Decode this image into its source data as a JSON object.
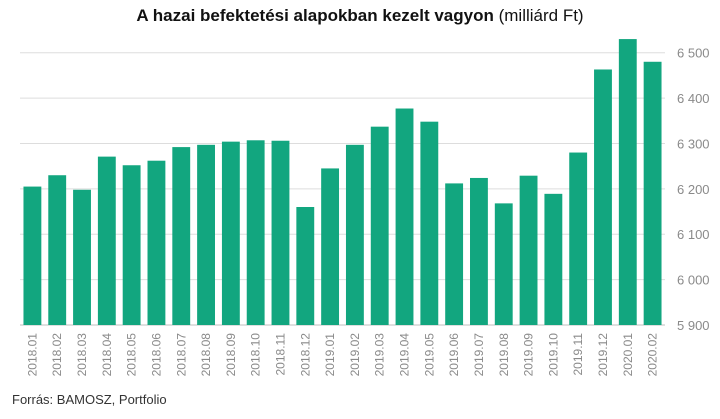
{
  "title": {
    "bold": "A hazai befektetési alapokban kezelt vagyon",
    "normal": "(milliárd Ft)"
  },
  "source": "Forrás: BAMOSZ, Portfolio",
  "colors": {
    "bar": "#12a67f",
    "grid": "#dddddd",
    "axis": "#bfbfbf"
  },
  "chart_data": {
    "type": "bar",
    "categories": [
      "2018.01",
      "2018.02",
      "2018.03",
      "2018.04",
      "2018.05",
      "2018.06",
      "2018.07",
      "2018.08",
      "2018.09",
      "2018.10",
      "2018.11",
      "2018.12",
      "2019.01",
      "2019.02",
      "2019.03",
      "2019.04",
      "2019.05",
      "2019.06",
      "2019.07",
      "2019.08",
      "2019.09",
      "2019.10",
      "2019.11",
      "2019.12",
      "2020.01",
      "2020.02"
    ],
    "values": [
      6205,
      6230,
      6198,
      6271,
      6252,
      6262,
      6292,
      6297,
      6304,
      6307,
      6306,
      6160,
      6245,
      6297,
      6337,
      6377,
      6348,
      6212,
      6224,
      6168,
      6229,
      6189,
      6280,
      6463,
      6530,
      6480
    ],
    "ylim": [
      5900,
      6550
    ],
    "yticks": [
      5900,
      6000,
      6100,
      6200,
      6300,
      6400,
      6500
    ],
    "ytick_labels": [
      "5 900",
      "6 000",
      "6 100",
      "6 200",
      "6 300",
      "6 400",
      "6 500"
    ],
    "grid": true,
    "legend": "none"
  }
}
